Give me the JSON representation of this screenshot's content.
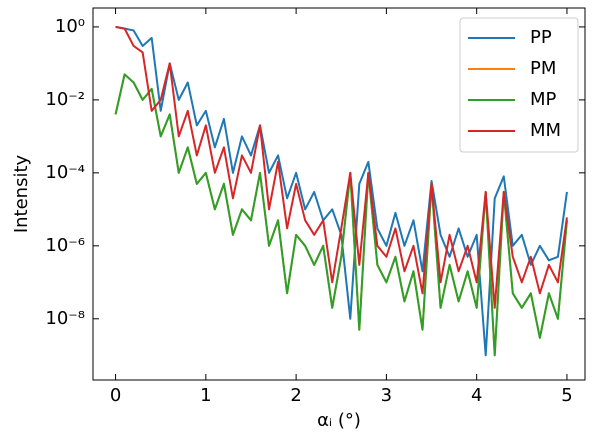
{
  "chart_data": {
    "type": "line",
    "xlabel": "αᵢ (°)",
    "ylabel": "Intensity",
    "yscale": "log",
    "xlim": [
      -0.25,
      5.2
    ],
    "ylim": [
      2.1e-10,
      3.3
    ],
    "xticks": [
      0,
      1,
      2,
      3,
      4,
      5
    ],
    "yticks": [
      {
        "value": 1,
        "label": "10⁰"
      },
      {
        "value": 0.01,
        "label": "10⁻²"
      },
      {
        "value": 0.0001,
        "label": "10⁻⁴"
      },
      {
        "value": 1e-06,
        "label": "10⁻⁶"
      },
      {
        "value": 1e-08,
        "label": "10⁻⁸"
      }
    ],
    "legend": "upper right",
    "x": [
      0,
      0.1,
      0.2,
      0.3,
      0.4,
      0.5,
      0.6,
      0.7,
      0.8,
      0.9,
      1.0,
      1.1,
      1.2,
      1.3,
      1.4,
      1.5,
      1.6,
      1.7,
      1.8,
      1.9,
      2.0,
      2.1,
      2.2,
      2.3,
      2.4,
      2.5,
      2.6,
      2.7,
      2.8,
      2.9,
      3.0,
      3.1,
      3.2,
      3.3,
      3.4,
      3.5,
      3.6,
      3.7,
      3.8,
      3.9,
      4.0,
      4.1,
      4.2,
      4.3,
      4.4,
      4.5,
      4.6,
      4.7,
      4.8,
      4.9,
      5.0
    ],
    "series": [
      {
        "name": "PP",
        "color": "#1f77b4",
        "values": [
          1,
          0.9,
          0.8,
          0.3,
          0.5,
          0.005,
          0.1,
          0.01,
          0.03,
          0.002,
          0.005,
          0.0005,
          0.003,
          0.0001,
          0.001,
          0.0003,
          0.002,
          0.0001,
          0.0003,
          2e-05,
          0.0001,
          1e-05,
          3e-05,
          5e-06,
          1e-05,
          2e-06,
          1e-08,
          5e-05,
          0.0002,
          3e-06,
          1e-06,
          8e-06,
          1e-06,
          5e-06,
          2e-07,
          6e-05,
          2e-06,
          5e-07,
          3e-06,
          5e-07,
          2e-06,
          1e-09,
          2e-05,
          8e-05,
          1e-06,
          2e-06,
          3e-07,
          1e-06,
          4e-07,
          5e-07,
          3e-05
        ]
      },
      {
        "name": "PM",
        "color": "#ff7f0e",
        "values": [
          0.004,
          0.05,
          0.03,
          0.01,
          0.02,
          0.001,
          0.004,
          0.0001,
          0.0005,
          5e-05,
          0.0001,
          1e-05,
          5e-05,
          2e-06,
          1e-05,
          5e-06,
          0.0001,
          1e-06,
          5e-06,
          5e-08,
          2e-06,
          1e-06,
          3e-07,
          1e-06,
          2e-08,
          5e-07,
          0.0001,
          5e-09,
          0.0001,
          3e-07,
          1e-07,
          5e-07,
          3e-08,
          2e-07,
          5e-09,
          5e-05,
          2e-08,
          3e-07,
          3e-08,
          2e-07,
          2e-08,
          3e-05,
          1e-09,
          3e-05,
          5e-08,
          2e-08,
          5e-08,
          3e-09,
          5e-08,
          1e-08,
          5e-06
        ]
      },
      {
        "name": "MP",
        "color": "#2ca02c",
        "values": [
          0.004,
          0.05,
          0.03,
          0.01,
          0.02,
          0.001,
          0.004,
          0.0001,
          0.0005,
          5e-05,
          0.0001,
          1e-05,
          5e-05,
          2e-06,
          1e-05,
          5e-06,
          0.0001,
          1e-06,
          5e-06,
          5e-08,
          2e-06,
          1e-06,
          3e-07,
          1e-06,
          2e-08,
          5e-07,
          0.0001,
          5e-09,
          0.0001,
          3e-07,
          1e-07,
          5e-07,
          3e-08,
          2e-07,
          5e-09,
          5e-05,
          2e-08,
          3e-07,
          3e-08,
          2e-07,
          2e-08,
          3e-05,
          1e-09,
          3e-05,
          5e-08,
          2e-08,
          5e-08,
          3e-09,
          5e-08,
          1e-08,
          5e-06
        ]
      },
      {
        "name": "MM",
        "color": "#d62728",
        "values": [
          1,
          0.9,
          0.3,
          0.2,
          0.005,
          0.01,
          0.1,
          0.001,
          0.005,
          0.0003,
          0.002,
          0.0001,
          0.0005,
          2e-05,
          0.0003,
          0.0001,
          0.002,
          1e-05,
          0.0002,
          3e-06,
          5e-05,
          5e-06,
          2e-06,
          5e-06,
          1e-07,
          3e-06,
          0.0001,
          3e-07,
          0.0001,
          1e-06,
          5e-07,
          3e-06,
          2e-07,
          1e-06,
          5e-08,
          5e-05,
          1e-07,
          2e-06,
          2e-07,
          1e-06,
          1e-07,
          3e-05,
          2e-08,
          3e-05,
          5e-07,
          1e-07,
          5e-07,
          5e-08,
          3e-07,
          1e-07,
          6e-06
        ]
      }
    ]
  }
}
